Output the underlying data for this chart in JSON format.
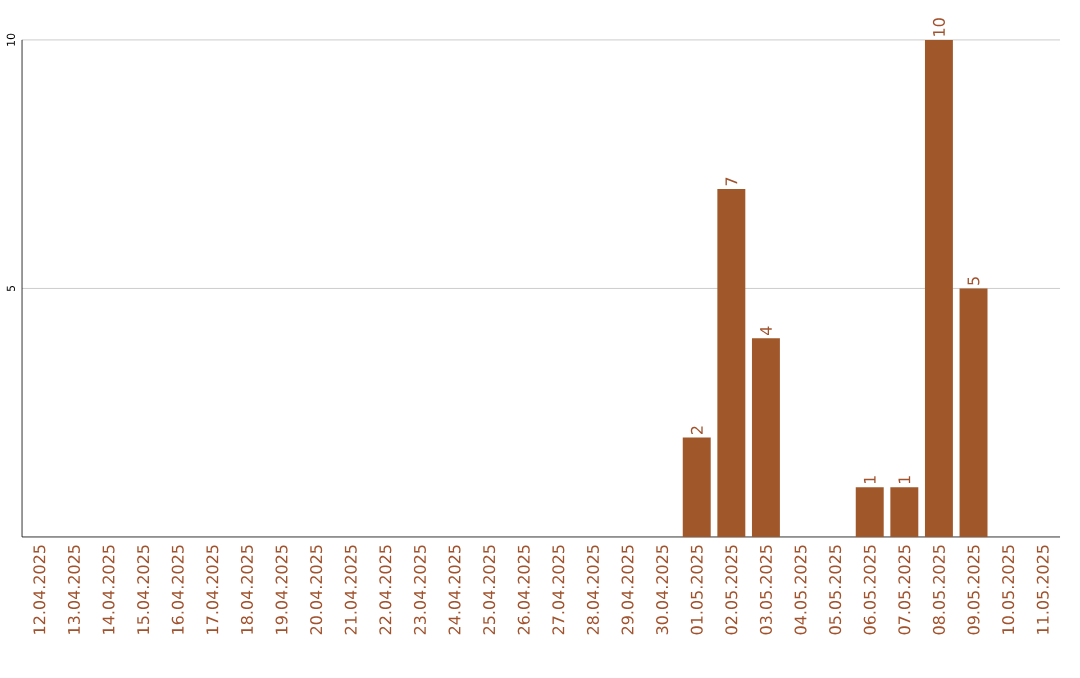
{
  "chart_data": {
    "type": "bar",
    "categories": [
      "12.04.2025",
      "13.04.2025",
      "14.04.2025",
      "15.04.2025",
      "16.04.2025",
      "17.04.2025",
      "18.04.2025",
      "19.04.2025",
      "20.04.2025",
      "21.04.2025",
      "22.04.2025",
      "23.04.2025",
      "24.04.2025",
      "25.04.2025",
      "26.04.2025",
      "27.04.2025",
      "28.04.2025",
      "29.04.2025",
      "30.04.2025",
      "01.05.2025",
      "02.05.2025",
      "03.05.2025",
      "04.05.2025",
      "05.05.2025",
      "06.05.2025",
      "07.05.2025",
      "08.05.2025",
      "09.05.2025",
      "10.05.2025",
      "11.05.2025"
    ],
    "values": [
      0,
      0,
      0,
      0,
      0,
      0,
      0,
      0,
      0,
      0,
      0,
      0,
      0,
      0,
      0,
      0,
      0,
      0,
      0,
      2,
      7,
      4,
      0,
      0,
      1,
      1,
      10,
      5,
      0,
      0
    ],
    "value_labels": [
      null,
      null,
      null,
      null,
      null,
      null,
      null,
      null,
      null,
      null,
      null,
      null,
      null,
      null,
      null,
      null,
      null,
      null,
      null,
      "2",
      "7",
      "4",
      null,
      null,
      "1",
      "1",
      "10",
      "5",
      null,
      null
    ],
    "color": "#a0582a",
    "ylim": [
      0,
      10
    ],
    "yticks": [
      5,
      10
    ],
    "grid": "y"
  }
}
